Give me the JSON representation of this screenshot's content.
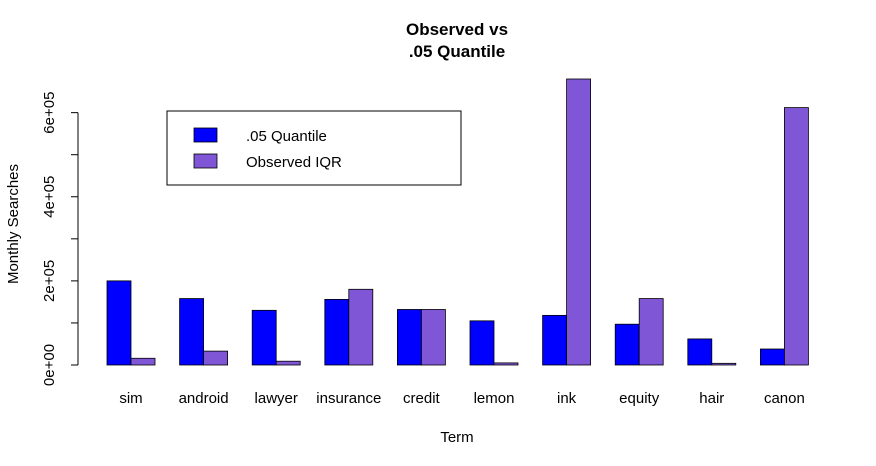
{
  "chart_data": {
    "type": "bar",
    "title_lines": [
      "Observed vs",
      ".05 Quantile"
    ],
    "xlabel": "Term",
    "ylabel": "Monthly Searches",
    "categories": [
      "sim",
      "android",
      "lawyer",
      "insurance",
      "credit",
      "lemon",
      "ink",
      "equity",
      "hair",
      "canon"
    ],
    "series": [
      {
        "name": ".05 Quantile",
        "color": "#0000FF",
        "values": [
          200000,
          158000,
          130000,
          156000,
          132000,
          105000,
          118000,
          97000,
          62000,
          38000
        ]
      },
      {
        "name": "Observed IQR",
        "color": "#7F56D6",
        "values": [
          16000,
          33000,
          9000,
          180000,
          132000,
          5000,
          680000,
          158000,
          4000,
          612000
        ]
      }
    ],
    "ylim": [
      0,
      680000
    ],
    "yticks": [
      0,
      200000,
      400000,
      600000
    ],
    "ytick_labels": [
      "0e+00",
      "2e+05",
      "4e+05",
      "6e+05"
    ],
    "grid": false,
    "legend_position": "top-left"
  }
}
